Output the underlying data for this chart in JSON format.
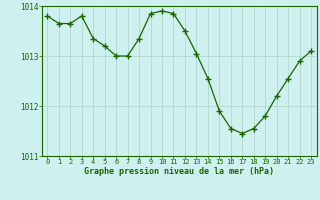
{
  "x": [
    0,
    1,
    2,
    3,
    4,
    5,
    6,
    7,
    8,
    9,
    10,
    11,
    12,
    13,
    14,
    15,
    16,
    17,
    18,
    19,
    20,
    21,
    22,
    23
  ],
  "y": [
    1013.8,
    1013.65,
    1013.65,
    1013.8,
    1013.35,
    1013.2,
    1013.0,
    1013.0,
    1013.35,
    1013.85,
    1013.9,
    1013.85,
    1013.5,
    1013.05,
    1012.55,
    1011.9,
    1011.55,
    1011.45,
    1011.55,
    1011.8,
    1012.2,
    1012.55,
    1012.9,
    1013.1
  ],
  "ylim": [
    1011.0,
    1014.0
  ],
  "yticks": [
    1011,
    1012,
    1013,
    1014
  ],
  "xlim": [
    -0.5,
    23.5
  ],
  "xticks": [
    0,
    1,
    2,
    3,
    4,
    5,
    6,
    7,
    8,
    9,
    10,
    11,
    12,
    13,
    14,
    15,
    16,
    17,
    18,
    19,
    20,
    21,
    22,
    23
  ],
  "line_color": "#1a6600",
  "marker_color": "#1a6600",
  "bg_color": "#cef0ee",
  "grid_color": "#b0d8d0",
  "xlabel": "Graphe pression niveau de la mer (hPa)",
  "xlabel_color": "#1a6600",
  "fig_bg": "#cef0ee"
}
